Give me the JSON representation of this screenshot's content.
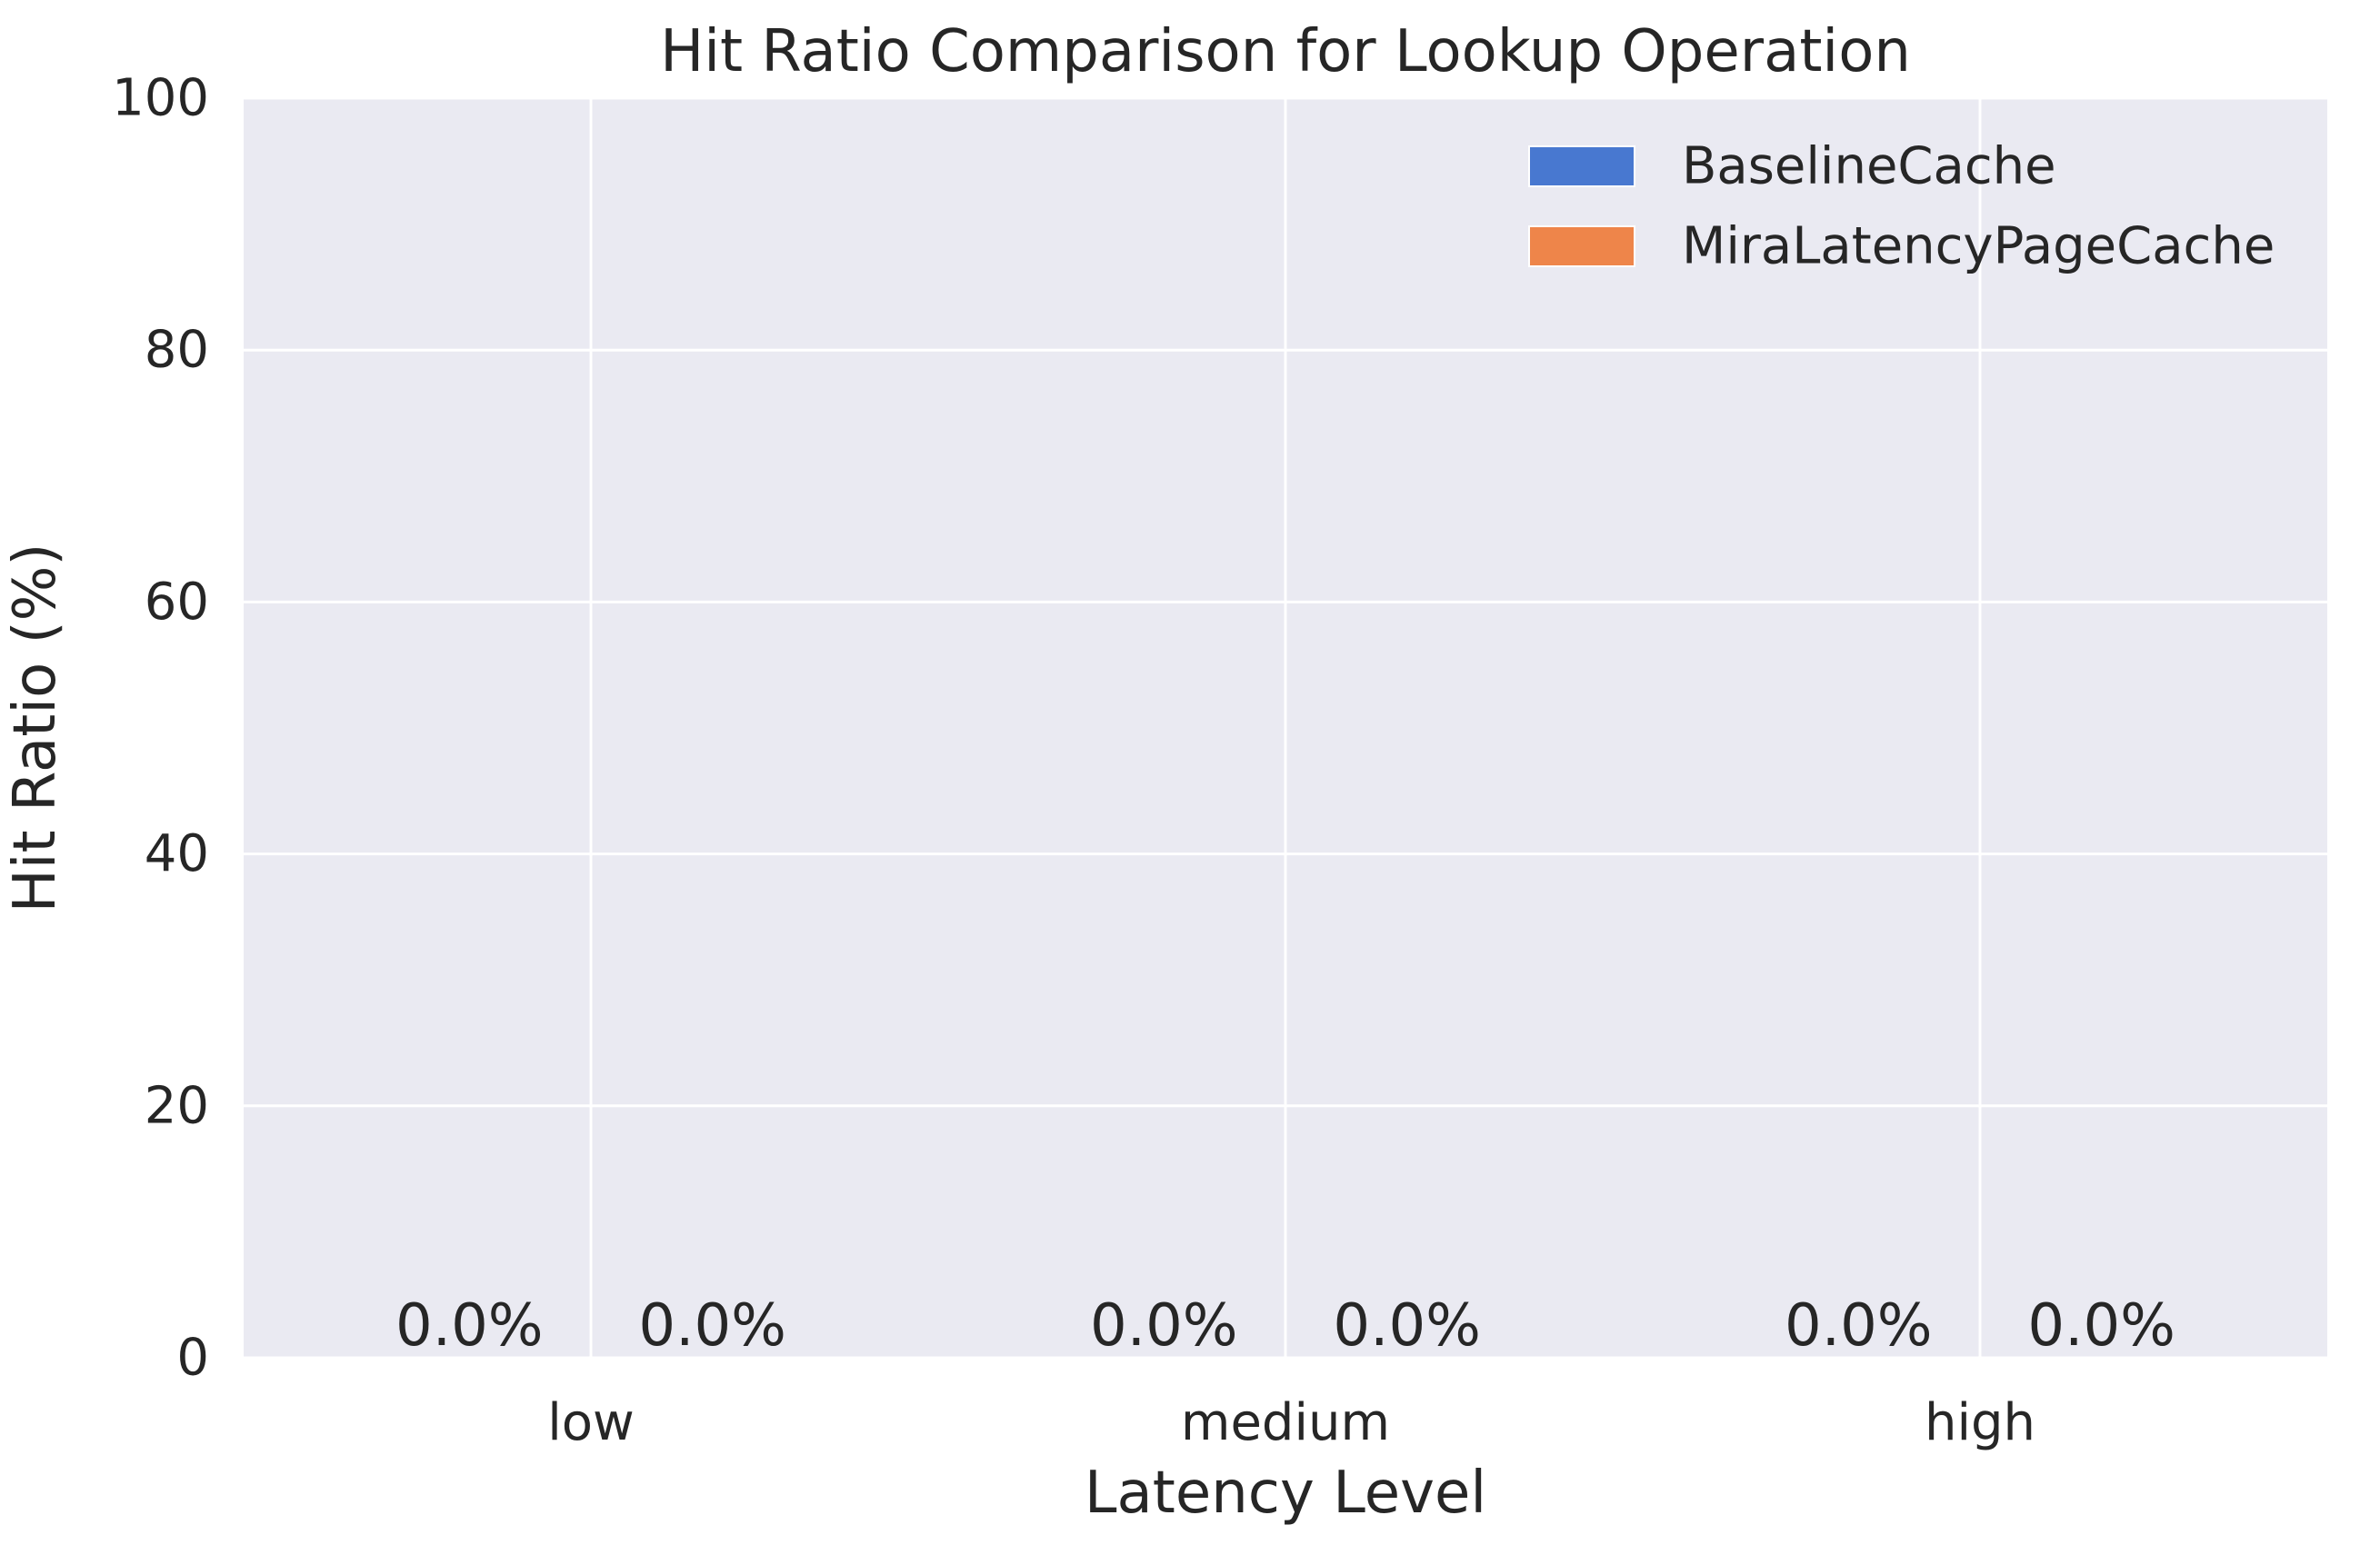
{
  "chart_data": {
    "type": "bar",
    "title": "Hit Ratio Comparison for Lookup Operation",
    "xlabel": "Latency Level",
    "ylabel": "Hit Ratio (%)",
    "categories": [
      "low",
      "medium",
      "high"
    ],
    "ylim": [
      0,
      100
    ],
    "yticks": [
      0,
      20,
      40,
      60,
      80,
      100
    ],
    "grid": true,
    "legend_position": "top-right",
    "series": [
      {
        "name": "BaselineCache",
        "color": "#4878d0",
        "values": [
          0.0,
          0.0,
          0.0
        ],
        "labels": [
          "0.0%",
          "0.0%",
          "0.0%"
        ]
      },
      {
        "name": "MiraLatencyPageCache",
        "color": "#ee854a",
        "values": [
          0.0,
          0.0,
          0.0
        ],
        "labels": [
          "0.0%",
          "0.0%",
          "0.0%"
        ]
      }
    ],
    "background_color": "#eaeaf2",
    "grid_color": "#ffffff"
  }
}
